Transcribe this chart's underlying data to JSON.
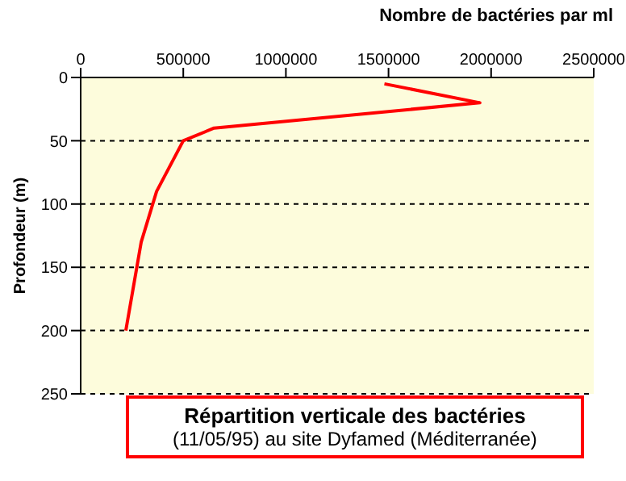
{
  "chart_data": {
    "type": "line",
    "title": "Répartition verticale des bactéries",
    "subtitle": "(11/05/95) au site Dyfamed (Méditerranée)",
    "xlabel": "Nombre de bactéries par ml",
    "ylabel": "Profondeur (m)",
    "x": [
      1480000,
      1945000,
      650000,
      500000,
      370000,
      295000,
      220000
    ],
    "series": [
      {
        "color": "#ff0000",
        "values": [
          5,
          20,
          40,
          50,
          90,
          130,
          200
        ]
      }
    ],
    "xlim": [
      0,
      2500000
    ],
    "xticks": [
      0,
      500000,
      1000000,
      1500000,
      2000000,
      2500000
    ],
    "ylim": [
      250,
      0
    ],
    "yticks": [
      0,
      50,
      100,
      150,
      200,
      250
    ],
    "grid": "y",
    "marker": "none",
    "line_style": "solid"
  }
}
